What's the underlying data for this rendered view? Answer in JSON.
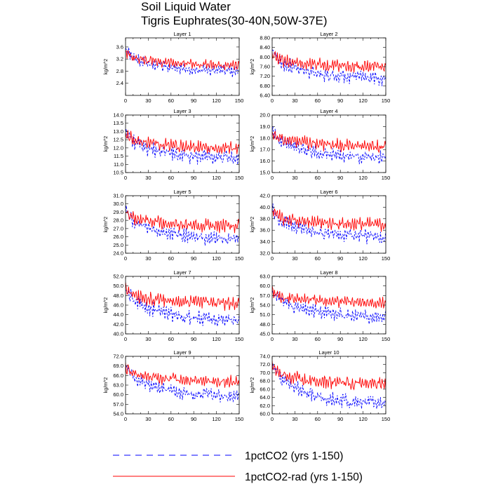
{
  "title_line1": "Soil Liquid Water",
  "title_line2": "Tigris Euphrates(30-40N,50W-37E)",
  "ylabel": "kg/m^2",
  "xticks": [
    0,
    30,
    60,
    90,
    120,
    150
  ],
  "xlim": [
    0,
    150
  ],
  "legend": [
    {
      "label": "1pctCO2 (yrs 1-150)",
      "color": "#0000ff",
      "style": "dashed"
    },
    {
      "label": "1pctCO2-rad (yrs 1-150)",
      "color": "#ff0000",
      "style": "solid"
    }
  ],
  "chart_data": [
    {
      "type": "line",
      "title": "Layer 1",
      "ylim": [
        2.0,
        3.9
      ],
      "yticks": [
        "2.4",
        "2.8",
        "3.2",
        "3.6"
      ],
      "series": [
        {
          "name": "1pctCO2 (yrs 1-150)",
          "start": 3.35,
          "end": 2.8,
          "amp": 0.24
        },
        {
          "name": "1pctCO2-rad (yrs 1-150)",
          "start": 3.3,
          "end": 3.0,
          "amp": 0.18
        }
      ]
    },
    {
      "type": "line",
      "title": "Layer 2",
      "ylim": [
        6.4,
        8.8
      ],
      "yticks": [
        "6.40",
        "6.80",
        "7.20",
        "7.60",
        "8.00",
        "8.40",
        "8.80"
      ],
      "series": [
        {
          "name": "1pctCO2 (yrs 1-150)",
          "start": 8.0,
          "end": 7.1,
          "amp": 0.35
        },
        {
          "name": "1pctCO2-rad (yrs 1-150)",
          "start": 7.95,
          "end": 7.6,
          "amp": 0.3
        }
      ]
    },
    {
      "type": "line",
      "title": "Layer 3",
      "ylim": [
        10.5,
        14.0
      ],
      "yticks": [
        "10.5",
        "11.0",
        "11.5",
        "12.0",
        "12.5",
        "13.0",
        "13.5",
        "14.0"
      ],
      "series": [
        {
          "name": "1pctCO2 (yrs 1-150)",
          "start": 12.6,
          "end": 11.4,
          "amp": 0.55
        },
        {
          "name": "1pctCO2-rad (yrs 1-150)",
          "start": 12.6,
          "end": 12.0,
          "amp": 0.45
        }
      ]
    },
    {
      "type": "line",
      "title": "Layer 4",
      "ylim": [
        15.0,
        20.0
      ],
      "yticks": [
        "15.0",
        "16.0",
        "17.0",
        "18.0",
        "19.0",
        "20.0"
      ],
      "series": [
        {
          "name": "1pctCO2 (yrs 1-150)",
          "start": 18.2,
          "end": 16.3,
          "amp": 0.7
        },
        {
          "name": "1pctCO2-rad (yrs 1-150)",
          "start": 18.1,
          "end": 17.3,
          "amp": 0.65
        }
      ]
    },
    {
      "type": "line",
      "title": "Layer 5",
      "ylim": [
        24.0,
        31.0
      ],
      "yticks": [
        "24.0",
        "25.0",
        "26.0",
        "27.0",
        "28.0",
        "29.0",
        "30.0",
        "31.0"
      ],
      "series": [
        {
          "name": "1pctCO2 (yrs 1-150)",
          "start": 28.5,
          "end": 25.7,
          "amp": 1.0
        },
        {
          "name": "1pctCO2-rad (yrs 1-150)",
          "start": 28.5,
          "end": 27.3,
          "amp": 0.9
        }
      ]
    },
    {
      "type": "line",
      "title": "Layer 6",
      "ylim": [
        32.0,
        42.0
      ],
      "yticks": [
        "32.0",
        "34.0",
        "36.0",
        "38.0",
        "40.0",
        "42.0"
      ],
      "series": [
        {
          "name": "1pctCO2 (yrs 1-150)",
          "start": 38.6,
          "end": 34.8,
          "amp": 1.4
        },
        {
          "name": "1pctCO2-rad (yrs 1-150)",
          "start": 38.5,
          "end": 37.0,
          "amp": 1.3
        }
      ]
    },
    {
      "type": "line",
      "title": "Layer 7",
      "ylim": [
        40.0,
        52.0
      ],
      "yticks": [
        "40.0",
        "42.0",
        "44.0",
        "46.0",
        "48.0",
        "50.0",
        "52.0"
      ],
      "series": [
        {
          "name": "1pctCO2 (yrs 1-150)",
          "start": 48.2,
          "end": 42.8,
          "amp": 1.9
        },
        {
          "name": "1pctCO2-rad (yrs 1-150)",
          "start": 48.2,
          "end": 46.3,
          "amp": 1.7
        }
      ]
    },
    {
      "type": "line",
      "title": "Layer 8",
      "ylim": [
        45.0,
        63.0
      ],
      "yticks": [
        "45.0",
        "48.0",
        "51.0",
        "54.0",
        "57.0",
        "60.0",
        "63.0"
      ],
      "series": [
        {
          "name": "1pctCO2 (yrs 1-150)",
          "start": 57.0,
          "end": 50.2,
          "amp": 2.4
        },
        {
          "name": "1pctCO2-rad (yrs 1-150)",
          "start": 57.0,
          "end": 54.8,
          "amp": 2.1
        }
      ]
    },
    {
      "type": "line",
      "title": "Layer 9",
      "ylim": [
        54.0,
        72.0
      ],
      "yticks": [
        "54.0",
        "57.0",
        "60.0",
        "63.0",
        "66.0",
        "69.0",
        "72.0"
      ],
      "series": [
        {
          "name": "1pctCO2 (yrs 1-150)",
          "start": 67.0,
          "end": 59.5,
          "amp": 2.5
        },
        {
          "name": "1pctCO2-rad (yrs 1-150)",
          "start": 67.0,
          "end": 64.2,
          "amp": 2.2
        }
      ]
    },
    {
      "type": "line",
      "title": "Layer 10",
      "ylim": [
        60.0,
        74.0
      ],
      "yticks": [
        "60.0",
        "62.0",
        "64.0",
        "66.0",
        "68.0",
        "70.0",
        "72.0",
        "74.0"
      ],
      "series": [
        {
          "name": "1pctCO2 (yrs 1-150)",
          "start": 70.5,
          "end": 62.5,
          "amp": 2.0
        },
        {
          "name": "1pctCO2-rad (yrs 1-150)",
          "start": 70.5,
          "end": 67.3,
          "amp": 1.9
        }
      ]
    }
  ]
}
